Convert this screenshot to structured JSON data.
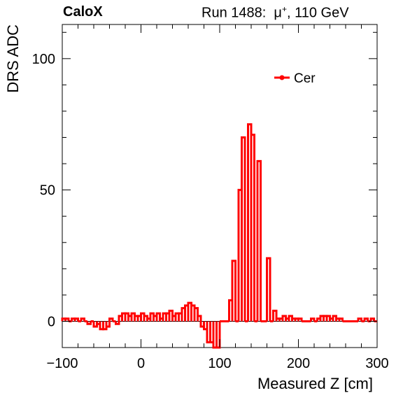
{
  "header": {
    "left": "CaloX",
    "right_run": "Run 1488:",
    "right_particle": "μ",
    "right_charge": "+",
    "right_energy": ", 110 GeV"
  },
  "chart_data": {
    "type": "histogram",
    "title": "",
    "xlabel": "Measured Z [cm]",
    "ylabel": "DRS ADC",
    "xlim": [
      -100,
      300
    ],
    "ylim": [
      -10,
      113
    ],
    "x_ticks": [
      -100,
      0,
      100,
      200,
      300
    ],
    "y_ticks": [
      0,
      50,
      100
    ],
    "grid": false,
    "legend_position": "top-right",
    "bin_width": 4,
    "series": [
      {
        "name": "Cer",
        "color": "#ff0000",
        "bin_start": -100,
        "values": [
          1,
          1,
          0,
          1,
          1,
          0,
          1,
          0,
          -1,
          0,
          -2,
          -1,
          -3,
          -3,
          -2,
          1,
          0,
          -1,
          2,
          3,
          3,
          2,
          3,
          2,
          2,
          3,
          2,
          1,
          3,
          2,
          3,
          1,
          3,
          3,
          4,
          2,
          3,
          3,
          5,
          6,
          7,
          6,
          5,
          2,
          -2,
          -3,
          -8,
          -8,
          -10,
          -10,
          0,
          0,
          0,
          8,
          23,
          0,
          50,
          70,
          0,
          75,
          71,
          0,
          61,
          0,
          0,
          24,
          0,
          4,
          1,
          1,
          2,
          1,
          2,
          1,
          1,
          1,
          0,
          0,
          0,
          1,
          0,
          1,
          2,
          2,
          2,
          1,
          2,
          1,
          1,
          0,
          0,
          0,
          0,
          0,
          1,
          0,
          1,
          0,
          1,
          0
        ]
      }
    ]
  }
}
